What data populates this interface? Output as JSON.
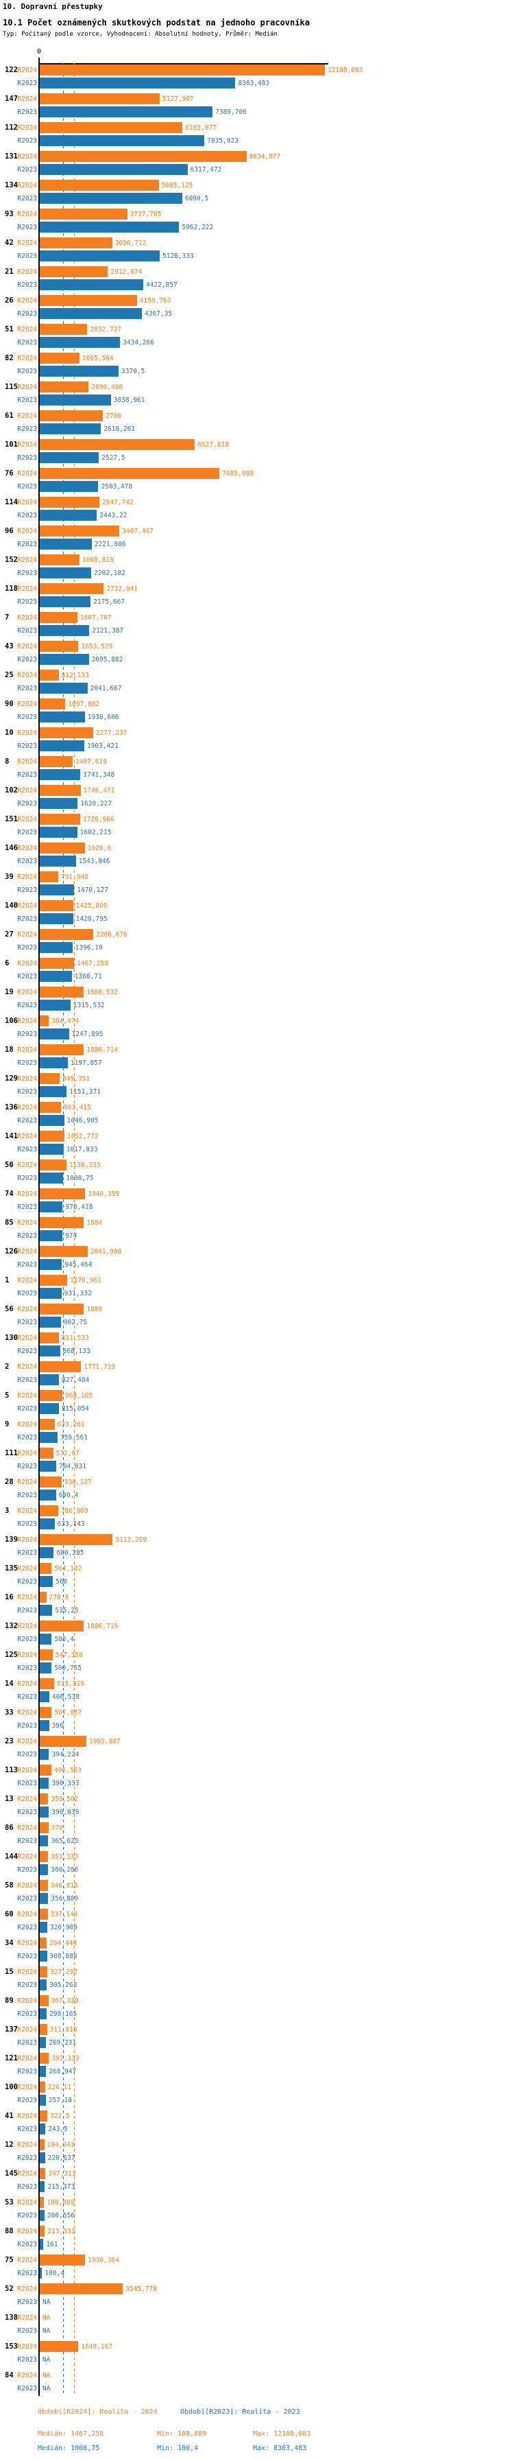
{
  "header": {
    "title": "10. Dopravní přestupky",
    "subtitle": "10.1 Počet oznámených skutkových podstat na jednoho pracovníka",
    "meta": "Typ: Počítaný podle vzorce, Vyhodnocení: Absolutní hodnoty, Průměr: Medián"
  },
  "chart_data": {
    "type": "bar",
    "orientation": "horizontal",
    "x_axis": {
      "zero_label": "0",
      "xlim": [
        0,
        12330
      ]
    },
    "grid": "median-lines-only",
    "legend_position": "bottom",
    "series": [
      {
        "id": "r2024",
        "label": "R2024",
        "color": "#f57e1f",
        "median": 1467.258,
        "min": 188.889,
        "max": 12188.083
      },
      {
        "id": "r2023",
        "label": "R2023",
        "color": "#1f77b4",
        "median": 1008.75,
        "min": 100.4,
        "max": 8363.483
      }
    ],
    "rows": [
      {
        "category": "122",
        "r2024": "12188,083",
        "r2023": "8363,483"
      },
      {
        "category": "147",
        "r2024": "5127,967",
        "r2023": "7389,706"
      },
      {
        "category": "112",
        "r2024": "6103,077",
        "r2023": "7035,923"
      },
      {
        "category": "131",
        "r2024": "8834,877",
        "r2023": "6317,472"
      },
      {
        "category": "134",
        "r2024": "5085,125",
        "r2023": "6090,5"
      },
      {
        "category": "93",
        "r2024": "3737,705",
        "r2023": "5962,222"
      },
      {
        "category": "42",
        "r2024": "3096,712",
        "r2023": "5128,333"
      },
      {
        "category": "21",
        "r2024": "2912,874",
        "r2023": "4422,857"
      },
      {
        "category": "26",
        "r2024": "4150,763",
        "r2023": "4367,35"
      },
      {
        "category": "51",
        "r2024": "2032,727",
        "r2023": "3434,266"
      },
      {
        "category": "82",
        "r2024": "1695,564",
        "r2023": "3370,5"
      },
      {
        "category": "115",
        "r2024": "2090,488",
        "r2023": "3038,961"
      },
      {
        "category": "61",
        "r2024": "2700",
        "r2023": "2618,261"
      },
      {
        "category": "101",
        "r2024": "6627,818",
        "r2023": "2527,5"
      },
      {
        "category": "76",
        "r2024": "7685,088",
        "r2023": "2503,478"
      },
      {
        "category": "114",
        "r2024": "2547,742",
        "r2023": "2443,22"
      },
      {
        "category": "96",
        "r2024": "3407,467",
        "r2023": "2221,806"
      },
      {
        "category": "152",
        "r2024": "1698,818",
        "r2023": "2202,182"
      },
      {
        "category": "118",
        "r2024": "2732,941",
        "r2023": "2175,667"
      },
      {
        "category": "7",
        "r2024": "1607,707",
        "r2023": "2121,387"
      },
      {
        "category": "43",
        "r2024": "1653,529",
        "r2023": "2095,882"
      },
      {
        "category": "25",
        "r2024": "812,133",
        "r2023": "2041,667"
      },
      {
        "category": "90",
        "r2024": "1097,802",
        "r2023": "1930,606"
      },
      {
        "category": "10",
        "r2024": "2277,237",
        "r2023": "1903,421"
      },
      {
        "category": "8",
        "r2024": "1407,619",
        "r2023": "1741,348"
      },
      {
        "category": "102",
        "r2024": "1746,471",
        "r2023": "1620,227"
      },
      {
        "category": "151",
        "r2024": "1726,966",
        "r2023": "1602,215"
      },
      {
        "category": "146",
        "r2024": "1926,6",
        "r2023": "1543,846"
      },
      {
        "category": "39",
        "r2024": "791,948",
        "r2023": "1470,127"
      },
      {
        "category": "140",
        "r2024": "1425,806",
        "r2023": "1428,795"
      },
      {
        "category": "27",
        "r2024": "2288,676",
        "r2023": "1396,19"
      },
      {
        "category": "6",
        "r2024": "1467,258",
        "r2023": "1368,71"
      },
      {
        "category": "19",
        "r2024": "1880,532",
        "r2023": "1315,532"
      },
      {
        "category": "106",
        "r2024": "384,474",
        "r2023": "1247,895"
      },
      {
        "category": "18",
        "r2024": "1886,714",
        "r2023": "1197,857"
      },
      {
        "category": "129",
        "r2024": "849,351",
        "r2023": "1151,371"
      },
      {
        "category": "136",
        "r2024": "903,415",
        "r2023": "1046,905"
      },
      {
        "category": "141",
        "r2024": "1052,772",
        "r2023": "1017,833"
      },
      {
        "category": "50",
        "r2024": "1138,333",
        "r2023": "1008,75"
      },
      {
        "category": "74",
        "r2024": "1940,359",
        "r2023": "978,418"
      },
      {
        "category": "85",
        "r2024": "1884",
        "r2023": "974"
      },
      {
        "category": "126",
        "r2024": "2041,908",
        "r2023": "945,464"
      },
      {
        "category": "1",
        "r2024": "1170,961",
        "r2023": "931,332"
      },
      {
        "category": "56",
        "r2024": "1888",
        "r2023": "902,75"
      },
      {
        "category": "130",
        "r2024": "811,533",
        "r2023": "868,133"
      },
      {
        "category": "2",
        "r2024": "1771,719",
        "r2023": "827,484"
      },
      {
        "category": "5",
        "r2024": "964,105",
        "r2023": "815,054"
      },
      {
        "category": "9",
        "r2024": "633,261",
        "r2023": "759,561"
      },
      {
        "category": "111",
        "r2024": "572,67",
        "r2023": "704,831"
      },
      {
        "category": "28",
        "r2024": "930,127",
        "r2023": "690,4"
      },
      {
        "category": "3",
        "r2024": "786,069",
        "r2023": "633,143"
      },
      {
        "category": "139",
        "r2024": "3113,269",
        "r2023": "600,285"
      },
      {
        "category": "135",
        "r2024": "504,132",
        "r2023": "560"
      },
      {
        "category": "16",
        "r2024": "278,8",
        "r2023": "535,25"
      },
      {
        "category": "132",
        "r2024": "1886,719",
        "r2023": "508,4"
      },
      {
        "category": "125",
        "r2024": "547,358",
        "r2023": "500,755"
      },
      {
        "category": "14",
        "r2024": "615,319",
        "r2023": "406,538"
      },
      {
        "category": "33",
        "r2024": "507,857",
        "r2023": "396"
      },
      {
        "category": "23",
        "r2024": "1992,887",
        "r2023": "394,224"
      },
      {
        "category": "113",
        "r2024": "496,563",
        "r2023": "390,333"
      },
      {
        "category": "13",
        "r2024": "359,502",
        "r2023": "390,039"
      },
      {
        "category": "86",
        "r2024": "370",
        "r2023": "365,625"
      },
      {
        "category": "144",
        "r2024": "353,333",
        "r2023": "360,286"
      },
      {
        "category": "58",
        "r2024": "346,815",
        "r2023": "356,889"
      },
      {
        "category": "60",
        "r2024": "337,143",
        "r2023": "320,909"
      },
      {
        "category": "34",
        "r2024": "294,444",
        "r2023": "308,889"
      },
      {
        "category": "15",
        "r2024": "327,297",
        "r2023": "305,263"
      },
      {
        "category": "89",
        "r2024": "367,328",
        "r2023": "298,165"
      },
      {
        "category": "137",
        "r2024": "311,818",
        "r2023": "269,231"
      },
      {
        "category": "121",
        "r2024": "392,333",
        "r2023": "268,947"
      },
      {
        "category": "100",
        "r2024": "226,11",
        "r2023": "257,18"
      },
      {
        "category": "41",
        "r2024": "322,5",
        "r2023": "243,5"
      },
      {
        "category": "12",
        "r2024": "194,943",
        "r2023": "220,637"
      },
      {
        "category": "145",
        "r2024": "247,313",
        "r2023": "215,373"
      },
      {
        "category": "53",
        "r2024": "188,889",
        "r2023": "200,556"
      },
      {
        "category": "88",
        "r2024": "213,333",
        "r2023": "161"
      },
      {
        "category": "75",
        "r2024": "1938,364",
        "r2023": "100,4"
      },
      {
        "category": "52",
        "r2024": "3545,778",
        "r2023": "NA"
      },
      {
        "category": "138",
        "r2024": "NA",
        "r2023": "NA"
      },
      {
        "category": "153",
        "r2024": "1649,167",
        "r2023": "NA"
      },
      {
        "category": "84",
        "r2024": "NA",
        "r2023": "NA"
      }
    ]
  },
  "legend": {
    "r2024": "Období[R2024]: Realita - 2024",
    "r2023": "Období[R2023]: Realita - 2023"
  },
  "stats": {
    "r2024": {
      "median": "Medián: 1467,258",
      "min": "Min: 188,889",
      "max": "Max: 12188,083"
    },
    "r2023": {
      "median": "Medián: 1008,75",
      "min": "Min: 100,4",
      "max": "Max: 8363,483"
    }
  }
}
